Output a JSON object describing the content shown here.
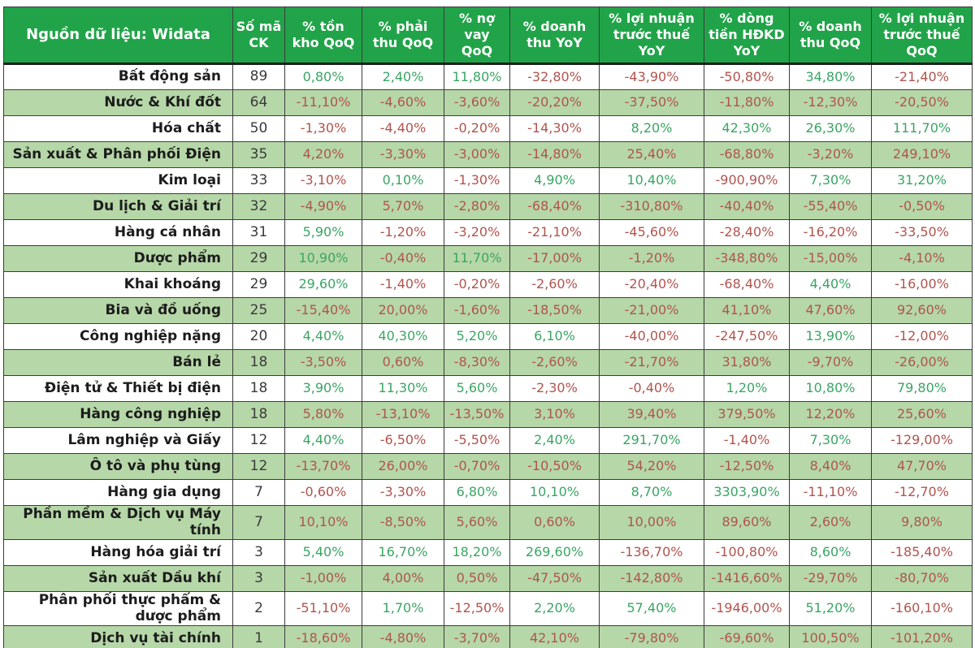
{
  "colors": {
    "header_bg": "#21A449",
    "header_text": "#FFFFFF",
    "row_bg": "#FFFFFF",
    "row_alt_bg": "#B6D7A8",
    "green_text": "#3AA564",
    "red_text": "#B0544E",
    "neutral_text": "#3A3A3A",
    "border": "#3C3C3C"
  },
  "chart_data": {
    "type": "table",
    "source_label": "Nguồn dữ liệu: Widata",
    "columns": [
      "Số mã CK",
      "% tồn kho QoQ",
      "% phải thu QoQ",
      "% nợ vay QoQ",
      "% doanh thu YoY",
      "% lợi nhuận trước thuế YoY",
      "% dòng tiền HĐKD YoY",
      "% doanh thu QoQ",
      "% lợi nhuận trước thuế QoQ"
    ],
    "rows": [
      {
        "sector": "Bất động sản",
        "count": "89",
        "values": [
          "0,80%",
          "2,40%",
          "11,80%",
          "-32,80%",
          "-43,90%",
          "-50,80%",
          "34,80%",
          "-21,40%"
        ],
        "value_colors": [
          "green",
          "green",
          "green",
          "red",
          "red",
          "red",
          "green",
          "red"
        ]
      },
      {
        "sector": "Nước & Khí đốt",
        "count": "64",
        "values": [
          "-11,10%",
          "-4,60%",
          "-3,60%",
          "-20,20%",
          "-37,50%",
          "-11,80%",
          "-12,30%",
          "-20,50%"
        ],
        "value_colors": [
          "red",
          "red",
          "red",
          "red",
          "red",
          "red",
          "red",
          "red"
        ]
      },
      {
        "sector": "Hóa chất",
        "count": "50",
        "values": [
          "-1,30%",
          "-4,40%",
          "-0,20%",
          "-14,30%",
          "8,20%",
          "42,30%",
          "26,30%",
          "111,70%"
        ],
        "value_colors": [
          "red",
          "red",
          "red",
          "red",
          "green",
          "green",
          "green",
          "green"
        ]
      },
      {
        "sector": "Sản xuất & Phân phối Điện",
        "count": "35",
        "values": [
          "4,20%",
          "-3,30%",
          "-3,00%",
          "-14,80%",
          "25,40%",
          "-68,80%",
          "-3,20%",
          "249,10%"
        ],
        "value_colors": [
          "red",
          "red",
          "red",
          "red",
          "red",
          "red",
          "red",
          "red"
        ]
      },
      {
        "sector": "Kim loại",
        "count": "33",
        "values": [
          "-3,10%",
          "0,10%",
          "-1,30%",
          "4,90%",
          "10,40%",
          "-900,90%",
          "7,30%",
          "31,20%"
        ],
        "value_colors": [
          "red",
          "green",
          "red",
          "green",
          "green",
          "red",
          "green",
          "green"
        ]
      },
      {
        "sector": "Du lịch & Giải trí",
        "count": "32",
        "values": [
          "-4,90%",
          "5,70%",
          "-2,80%",
          "-68,40%",
          "-310,80%",
          "-40,40%",
          "-55,40%",
          "-0,50%"
        ],
        "value_colors": [
          "red",
          "red",
          "red",
          "red",
          "red",
          "red",
          "red",
          "red"
        ]
      },
      {
        "sector": "Hàng cá nhân",
        "count": "31",
        "values": [
          "5,90%",
          "-1,20%",
          "-3,20%",
          "-21,10%",
          "-45,60%",
          "-28,40%",
          "-16,20%",
          "-33,50%"
        ],
        "value_colors": [
          "green",
          "red",
          "red",
          "red",
          "red",
          "red",
          "red",
          "red"
        ]
      },
      {
        "sector": "Dược phẩm",
        "count": "29",
        "values": [
          "10,90%",
          "-0,40%",
          "11,70%",
          "-17,00%",
          "-1,20%",
          "-348,80%",
          "-15,00%",
          "-4,10%"
        ],
        "value_colors": [
          "green",
          "red",
          "green",
          "red",
          "red",
          "red",
          "red",
          "red"
        ]
      },
      {
        "sector": "Khai khoáng",
        "count": "29",
        "values": [
          "29,60%",
          "-1,40%",
          "-0,20%",
          "-2,60%",
          "-20,40%",
          "-68,40%",
          "4,40%",
          "-16,00%"
        ],
        "value_colors": [
          "green",
          "red",
          "red",
          "red",
          "red",
          "red",
          "green",
          "red"
        ]
      },
      {
        "sector": "Bia và đồ uống",
        "count": "25",
        "values": [
          "-15,40%",
          "20,00%",
          "-1,60%",
          "-18,50%",
          "-21,00%",
          "41,10%",
          "47,60%",
          "92,60%"
        ],
        "value_colors": [
          "red",
          "red",
          "red",
          "red",
          "red",
          "red",
          "red",
          "red"
        ]
      },
      {
        "sector": "Công nghiệp nặng",
        "count": "20",
        "values": [
          "4,40%",
          "40,30%",
          "5,20%",
          "6,10%",
          "-40,00%",
          "-247,50%",
          "13,90%",
          "-12,00%"
        ],
        "value_colors": [
          "green",
          "green",
          "green",
          "green",
          "red",
          "red",
          "green",
          "red"
        ]
      },
      {
        "sector": "Bán lẻ",
        "count": "18",
        "values": [
          "-3,50%",
          "0,60%",
          "-8,30%",
          "-2,60%",
          "-21,70%",
          "31,80%",
          "-9,70%",
          "-26,00%"
        ],
        "value_colors": [
          "red",
          "red",
          "red",
          "red",
          "red",
          "red",
          "red",
          "red"
        ]
      },
      {
        "sector": "Điện tử & Thiết bị điện",
        "count": "18",
        "values": [
          "3,90%",
          "11,30%",
          "5,60%",
          "-2,30%",
          "-0,40%",
          "1,20%",
          "10,80%",
          "79,80%"
        ],
        "value_colors": [
          "green",
          "green",
          "green",
          "red",
          "red",
          "green",
          "green",
          "green"
        ]
      },
      {
        "sector": "Hàng công nghiệp",
        "count": "18",
        "values": [
          "5,80%",
          "-13,10%",
          "-13,50%",
          "3,10%",
          "39,40%",
          "379,50%",
          "12,20%",
          "25,60%"
        ],
        "value_colors": [
          "red",
          "red",
          "red",
          "red",
          "red",
          "red",
          "red",
          "red"
        ]
      },
      {
        "sector": "Lâm nghiệp và Giấy",
        "count": "12",
        "values": [
          "4,40%",
          "-6,50%",
          "-5,50%",
          "2,40%",
          "291,70%",
          "-1,40%",
          "7,30%",
          "-129,00%"
        ],
        "value_colors": [
          "green",
          "red",
          "red",
          "green",
          "green",
          "red",
          "green",
          "red"
        ]
      },
      {
        "sector": "Ô tô và phụ tùng",
        "count": "12",
        "values": [
          "-13,70%",
          "26,00%",
          "-0,70%",
          "-10,50%",
          "54,20%",
          "-12,50%",
          "8,40%",
          "47,70%"
        ],
        "value_colors": [
          "red",
          "red",
          "red",
          "red",
          "red",
          "red",
          "red",
          "red"
        ]
      },
      {
        "sector": "Hàng gia dụng",
        "count": "7",
        "values": [
          "-0,60%",
          "-3,30%",
          "6,80%",
          "10,10%",
          "8,70%",
          "3303,90%",
          "-11,10%",
          "-12,70%"
        ],
        "value_colors": [
          "red",
          "red",
          "green",
          "green",
          "green",
          "green",
          "red",
          "red"
        ]
      },
      {
        "sector": "Phần mềm & Dịch vụ Máy tính",
        "count": "7",
        "values": [
          "10,10%",
          "-8,50%",
          "5,60%",
          "0,60%",
          "10,00%",
          "89,60%",
          "2,60%",
          "9,80%"
        ],
        "value_colors": [
          "red",
          "red",
          "red",
          "red",
          "red",
          "red",
          "red",
          "red"
        ]
      },
      {
        "sector": "Hàng hóa giải trí",
        "count": "3",
        "values": [
          "5,40%",
          "16,70%",
          "18,20%",
          "269,60%",
          "-136,70%",
          "-100,80%",
          "8,60%",
          "-185,40%"
        ],
        "value_colors": [
          "green",
          "green",
          "green",
          "green",
          "red",
          "red",
          "green",
          "red"
        ]
      },
      {
        "sector": "Sản xuất Dầu khí",
        "count": "3",
        "values": [
          "-1,00%",
          "4,00%",
          "0,50%",
          "-47,50%",
          "-142,80%",
          "-1416,60%",
          "-29,70%",
          "-80,70%"
        ],
        "value_colors": [
          "red",
          "red",
          "red",
          "red",
          "red",
          "red",
          "red",
          "red"
        ]
      },
      {
        "sector": "Phân phối thực phẩm & dược phẩm",
        "count": "2",
        "values": [
          "-51,10%",
          "1,70%",
          "-12,50%",
          "2,20%",
          "57,40%",
          "-1946,00%",
          "51,20%",
          "-160,10%"
        ],
        "value_colors": [
          "red",
          "green",
          "red",
          "green",
          "green",
          "red",
          "green",
          "red"
        ]
      },
      {
        "sector": "Dịch vụ tài chính",
        "count": "1",
        "values": [
          "-18,60%",
          "-4,80%",
          "-3,70%",
          "42,10%",
          "-79,80%",
          "-69,60%",
          "100,50%",
          "-101,20%"
        ],
        "value_colors": [
          "red",
          "red",
          "red",
          "red",
          "red",
          "red",
          "red",
          "red"
        ]
      }
    ]
  }
}
